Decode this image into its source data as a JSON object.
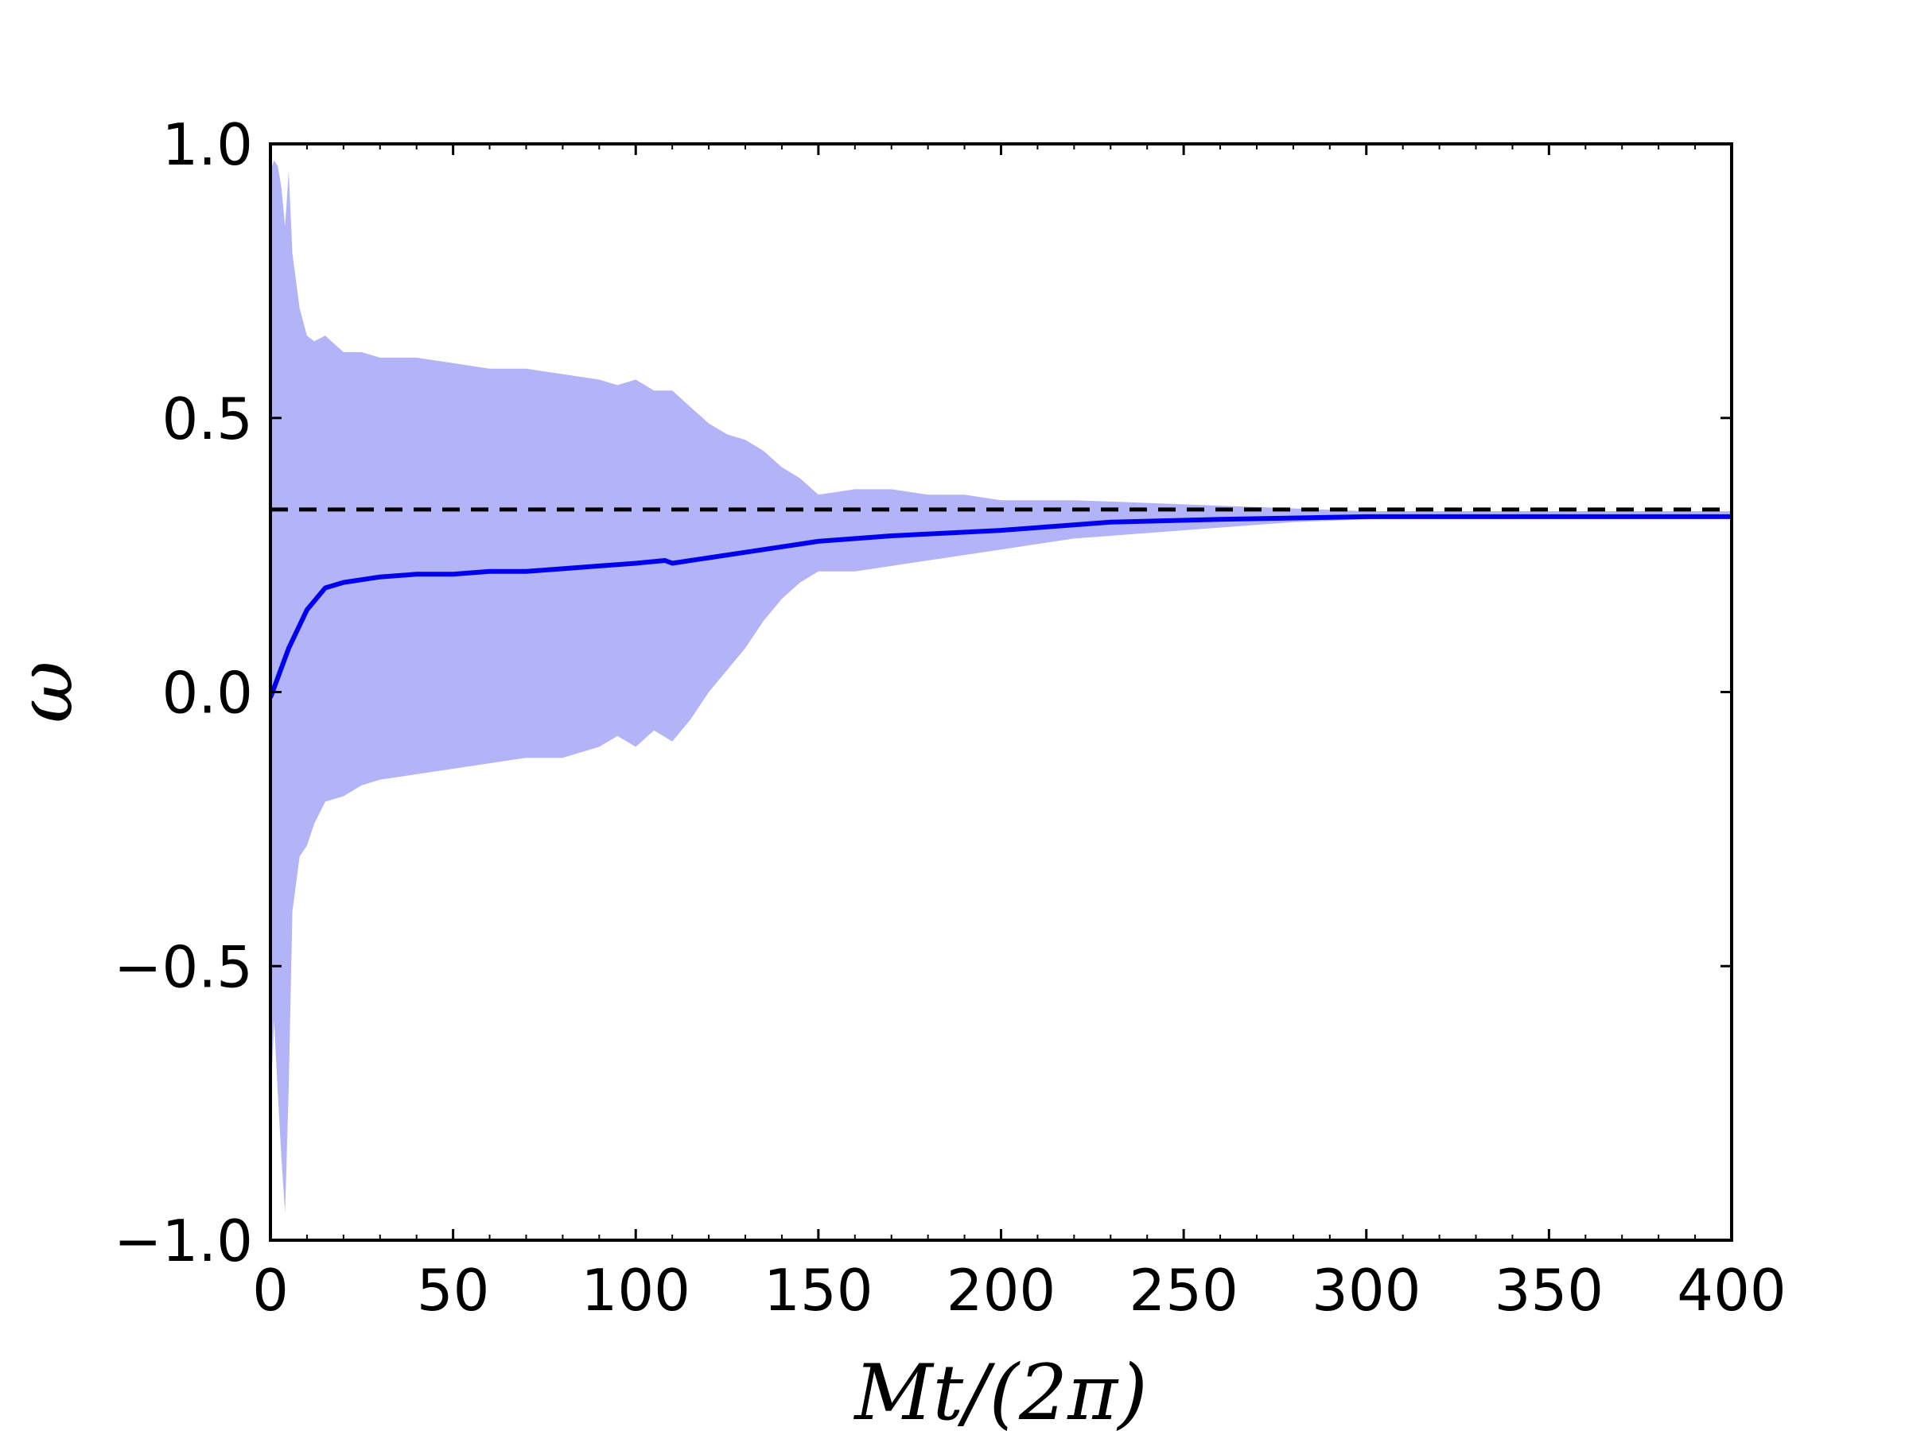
{
  "chart_data": {
    "type": "line",
    "xlabel": "Mt/(2π)",
    "ylabel": "ω",
    "xlim": [
      0,
      400
    ],
    "ylim": [
      -1.0,
      1.0
    ],
    "x_ticks": [
      0,
      50,
      100,
      150,
      200,
      250,
      300,
      350,
      400
    ],
    "x_tick_labels": [
      "0",
      "50",
      "100",
      "150",
      "200",
      "250",
      "300",
      "350",
      "400"
    ],
    "y_ticks": [
      -1.0,
      -0.5,
      0.0,
      0.5,
      1.0
    ],
    "y_tick_labels": [
      "−1.0",
      "−0.5",
      "0.0",
      "0.5",
      "1.0"
    ],
    "grid": false,
    "colors": {
      "mean_line": "#0000ee",
      "band": "#b3b3f8",
      "reference": "#000000"
    },
    "band": {
      "x": [
        0,
        1,
        2,
        3,
        4,
        5,
        6,
        8,
        10,
        12,
        15,
        20,
        25,
        30,
        40,
        50,
        60,
        70,
        80,
        90,
        95,
        100,
        105,
        110,
        115,
        120,
        125,
        130,
        135,
        140,
        145,
        150,
        160,
        170,
        180,
        190,
        200,
        220,
        240,
        260,
        280,
        300,
        320,
        340,
        360,
        380,
        400
      ],
      "upper": [
        0.95,
        0.97,
        0.96,
        0.92,
        0.85,
        0.95,
        0.8,
        0.7,
        0.65,
        0.64,
        0.65,
        0.62,
        0.62,
        0.61,
        0.61,
        0.6,
        0.59,
        0.59,
        0.58,
        0.57,
        0.56,
        0.57,
        0.55,
        0.55,
        0.52,
        0.49,
        0.47,
        0.46,
        0.44,
        0.41,
        0.39,
        0.36,
        0.37,
        0.37,
        0.36,
        0.36,
        0.35,
        0.35,
        0.345,
        0.34,
        0.335,
        0.33,
        0.33,
        0.33,
        0.33,
        0.33,
        0.33
      ],
      "lower": [
        -0.75,
        -0.6,
        -0.73,
        -0.85,
        -0.95,
        -0.72,
        -0.4,
        -0.3,
        -0.28,
        -0.24,
        -0.2,
        -0.19,
        -0.17,
        -0.16,
        -0.15,
        -0.14,
        -0.13,
        -0.12,
        -0.12,
        -0.1,
        -0.08,
        -0.1,
        -0.07,
        -0.09,
        -0.05,
        0.0,
        0.04,
        0.08,
        0.13,
        0.17,
        0.2,
        0.22,
        0.22,
        0.23,
        0.24,
        0.25,
        0.26,
        0.28,
        0.29,
        0.3,
        0.31,
        0.315,
        0.32,
        0.32,
        0.32,
        0.32,
        0.32
      ]
    },
    "series": [
      {
        "x": [
          0,
          5,
          10,
          15,
          20,
          30,
          40,
          50,
          60,
          70,
          80,
          90,
          100,
          108,
          110,
          130,
          150,
          170,
          200,
          230,
          260,
          300,
          350,
          400
        ],
        "y": [
          -0.01,
          0.08,
          0.15,
          0.19,
          0.2,
          0.21,
          0.215,
          0.215,
          0.22,
          0.22,
          0.225,
          0.23,
          0.235,
          0.24,
          0.235,
          0.255,
          0.275,
          0.285,
          0.295,
          0.31,
          0.315,
          0.32,
          0.32,
          0.32
        ]
      }
    ],
    "reference_line": {
      "y": 0.333,
      "style": "dashed"
    }
  }
}
